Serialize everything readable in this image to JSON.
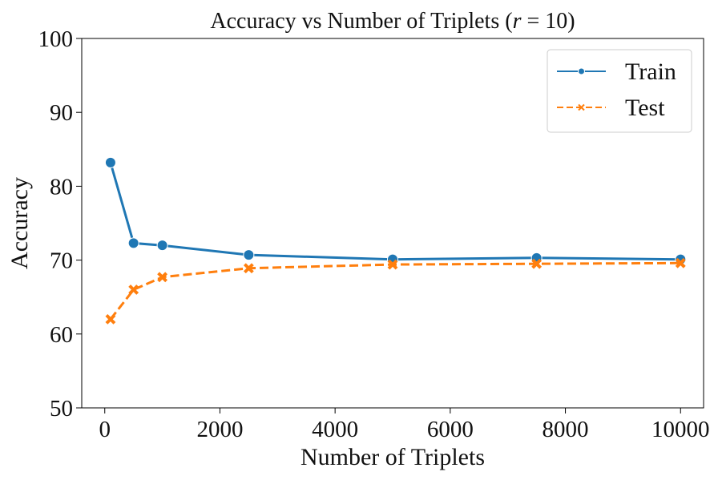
{
  "chart_data": {
    "type": "line",
    "title": "Accuracy vs Number of Triplets (r = 10)",
    "xlabel": "Number of Triplets",
    "ylabel": "Accuracy",
    "xlim": [
      -400,
      10400
    ],
    "ylim": [
      50,
      100
    ],
    "xticks": [
      0,
      2000,
      4000,
      6000,
      8000,
      10000
    ],
    "yticks": [
      50,
      60,
      70,
      80,
      90,
      100
    ],
    "legend_position": "top-right",
    "series": [
      {
        "name": "Train",
        "color": "#1f77b4",
        "linestyle": "solid",
        "marker": "circle",
        "x": [
          100,
          500,
          1000,
          2500,
          5000,
          7500,
          10000
        ],
        "y": [
          83.2,
          72.3,
          72.0,
          70.7,
          70.1,
          70.3,
          70.1
        ]
      },
      {
        "name": "Test",
        "color": "#ff7f0e",
        "linestyle": "dashed",
        "marker": "x",
        "x": [
          100,
          500,
          1000,
          2500,
          5000,
          7500,
          10000
        ],
        "y": [
          62.0,
          66.0,
          67.7,
          68.9,
          69.4,
          69.5,
          69.6
        ]
      }
    ]
  }
}
